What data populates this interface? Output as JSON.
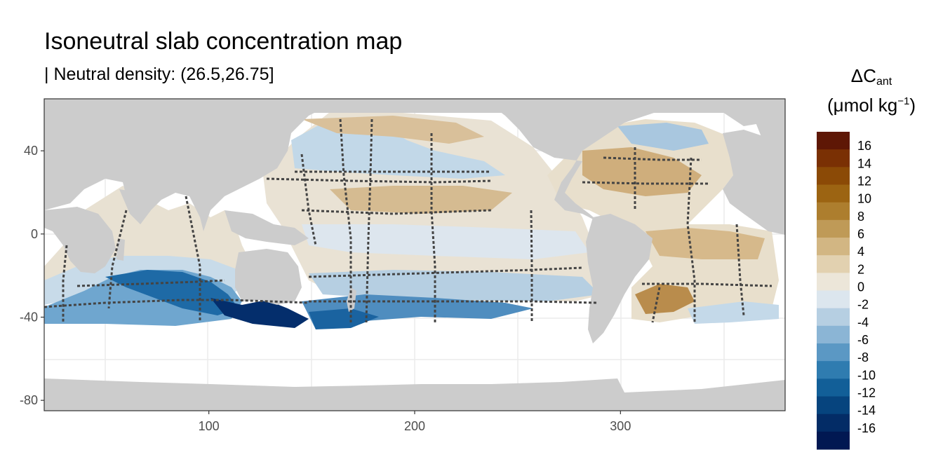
{
  "title": "Isoneutral slab concentration map",
  "subtitle": "| Neutral density: (26.5,26.75]",
  "legend": {
    "title_main": "ΔC",
    "title_sub": "ant",
    "unit_pre": "(μmol kg",
    "unit_sup": "−1",
    "unit_post": ")",
    "bins": [
      {
        "label": "16",
        "color": "#5e1705"
      },
      {
        "label": "14",
        "color": "#7a3004"
      },
      {
        "label": "12",
        "color": "#8b4a06"
      },
      {
        "label": "10",
        "color": "#9c6412"
      },
      {
        "label": "8",
        "color": "#ad7e2e"
      },
      {
        "label": "6",
        "color": "#bf9a57"
      },
      {
        "label": "4",
        "color": "#d2b683"
      },
      {
        "label": "2",
        "color": "#e2d1b0"
      },
      {
        "label": "0",
        "color": "#ece6d9"
      },
      {
        "label": "-2",
        "color": "#dce6ee"
      },
      {
        "label": "-4",
        "color": "#b6cfe2"
      },
      {
        "label": "-6",
        "color": "#8bb5d5"
      },
      {
        "label": "-8",
        "color": "#5b98c4"
      },
      {
        "label": "-10",
        "color": "#2f7cb0"
      },
      {
        "label": "-12",
        "color": "#125f98"
      },
      {
        "label": "-14",
        "color": "#06447e"
      },
      {
        "label": "-16",
        "color": "#032c66"
      },
      {
        "label": "",
        "color": "#011852"
      }
    ]
  },
  "axes": {
    "x_ticks": [
      100,
      200,
      300
    ],
    "y_ticks": [
      40,
      0,
      -40,
      -80
    ],
    "x_range": [
      20,
      380
    ],
    "y_range": [
      -85,
      65
    ]
  },
  "colors": {
    "land": "#cccccc",
    "no_data": "#ffffff",
    "stations": "#444444",
    "grid": "#ebebeb"
  }
}
